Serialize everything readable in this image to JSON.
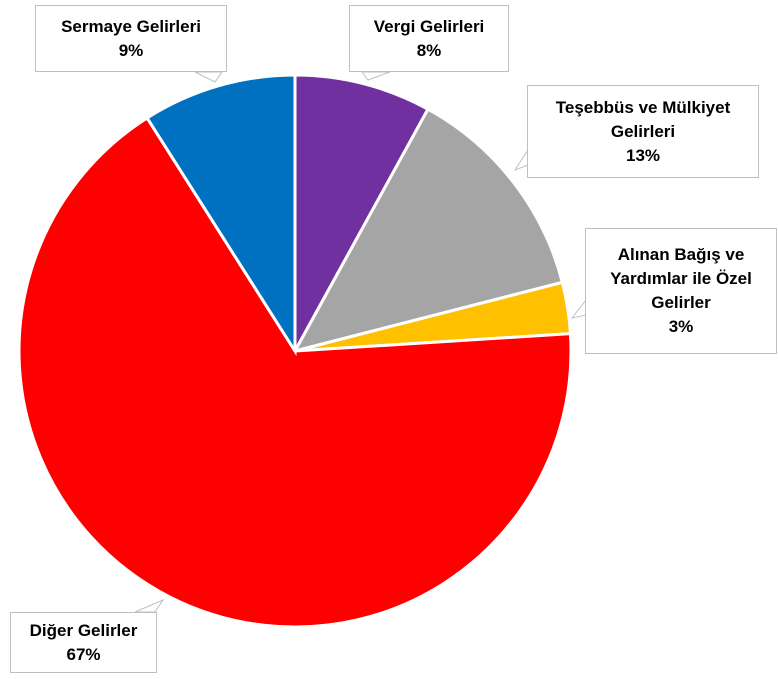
{
  "chart_data": {
    "type": "pie",
    "categories": [
      "Vergi Gelirleri",
      "Teşebbüs ve Mülkiyet Gelirleri",
      "Alınan Bağış ve Yardımlar ile Özel Gelirler",
      "Diğer Gelirler",
      "Sermaye Gelirleri"
    ],
    "values": [
      8,
      13,
      3,
      67,
      9
    ],
    "value_labels": [
      "8%",
      "13%",
      "3%",
      "67%",
      "9%"
    ],
    "colors": [
      "#7030a0",
      "#a5a5a5",
      "#ffc000",
      "#ff0000",
      "#0070c0"
    ]
  }
}
